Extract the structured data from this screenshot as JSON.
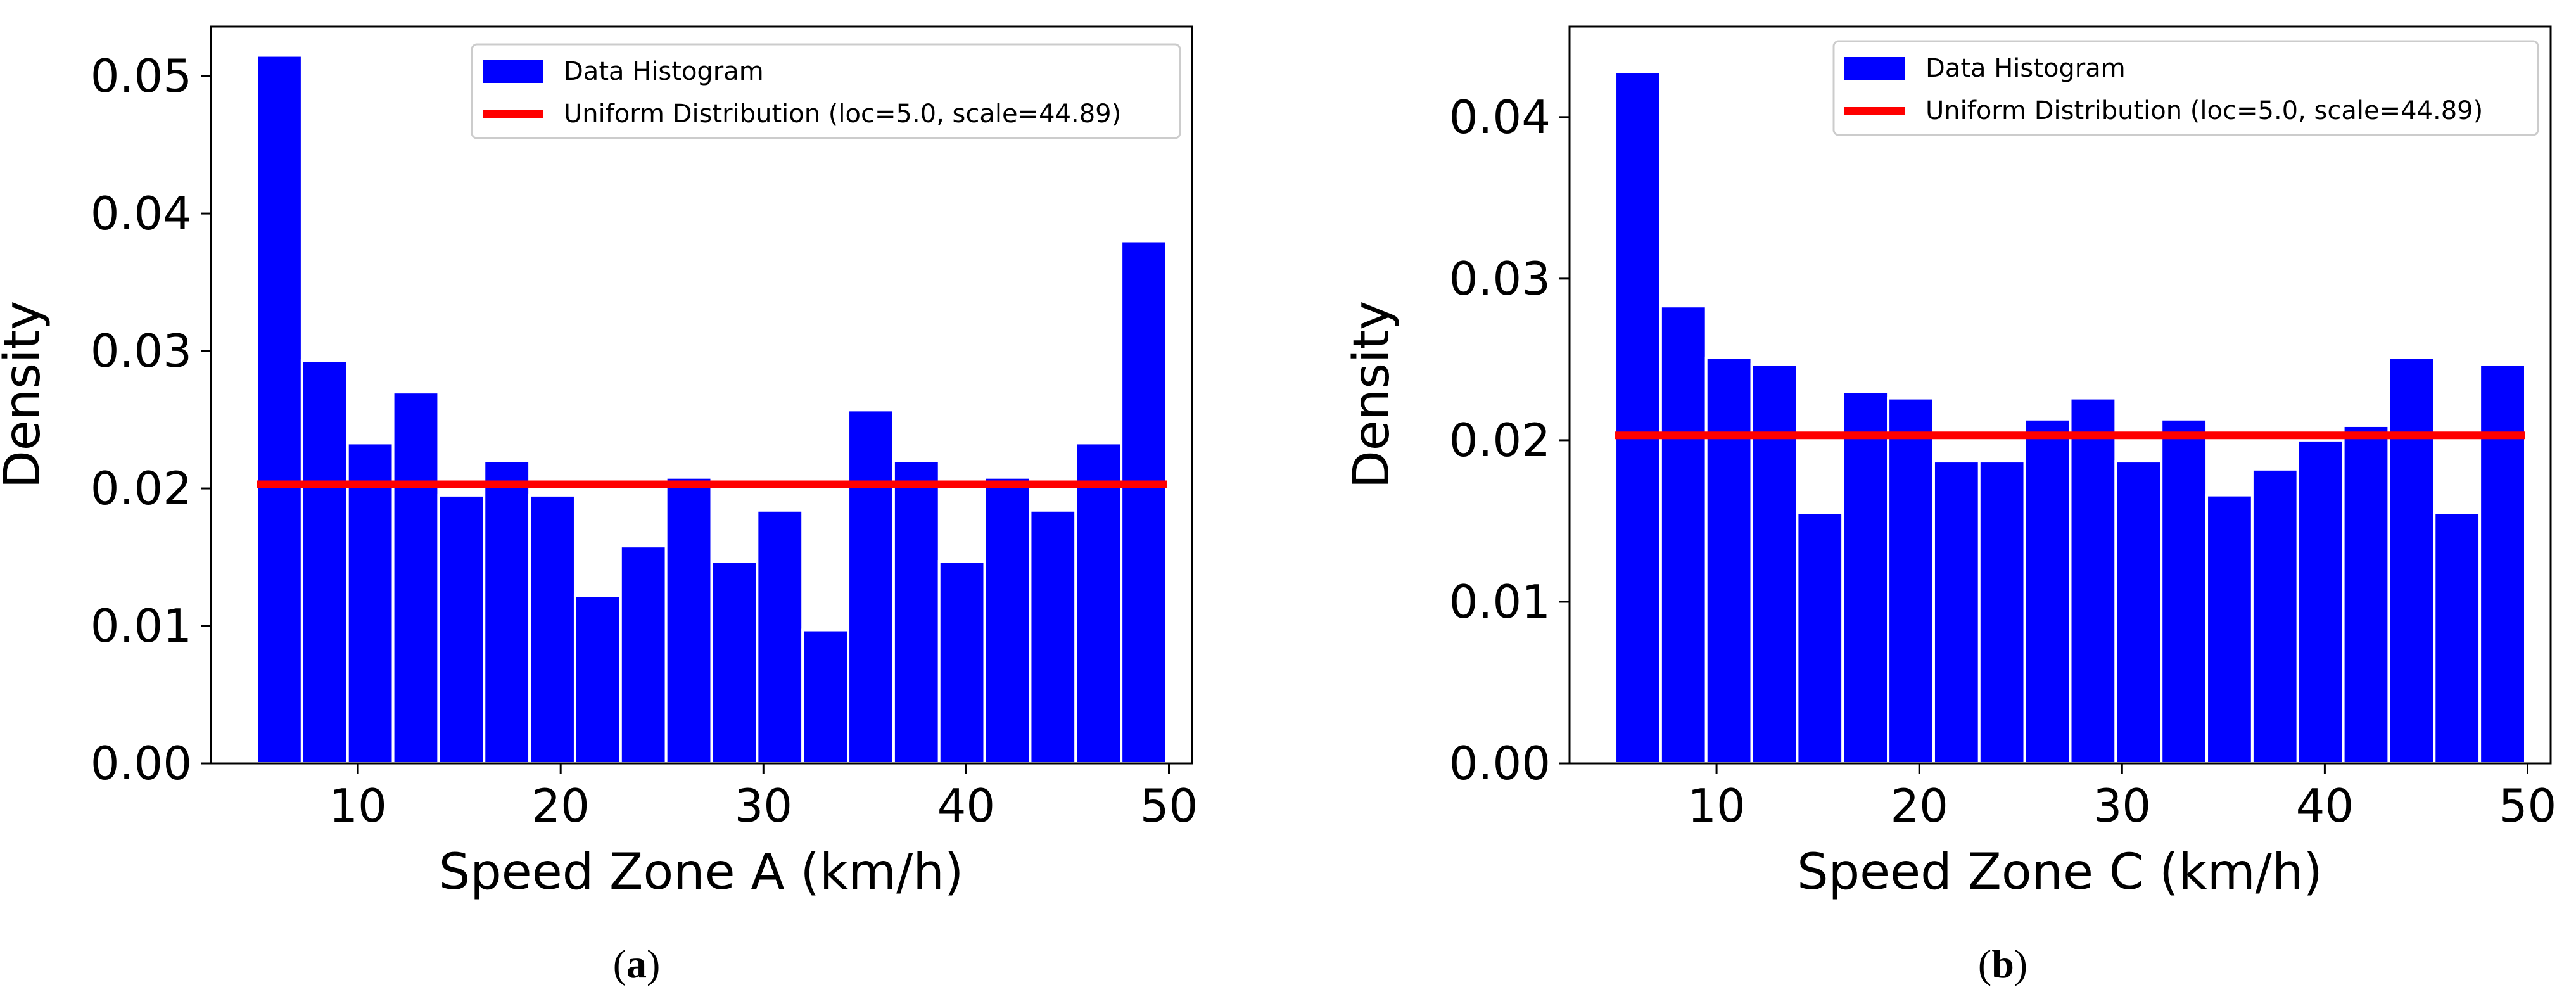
{
  "colors": {
    "bar": "#0000ff",
    "bar_edge": "#ffffff",
    "uniform_line": "#ff0000",
    "axis": "#000000",
    "background": "#ffffff"
  },
  "chart_data": [
    {
      "type": "bar",
      "subtype": "histogram",
      "caption_pre": "(",
      "caption_letter": "a",
      "caption_post": ")",
      "title": "",
      "xlabel": "Speed Zone A (km/h)",
      "ylabel": "Density",
      "xlim": [
        2.75,
        51.14
      ],
      "ylim": [
        0,
        0.0536
      ],
      "xticks": [
        10,
        20,
        30,
        40,
        50
      ],
      "xtick_labels": [
        "10",
        "20",
        "30",
        "40",
        "50"
      ],
      "yticks": [
        0,
        0.01,
        0.02,
        0.03,
        0.04,
        0.05
      ],
      "ytick_labels": [
        "0.00",
        "0.01",
        "0.02",
        "0.03",
        "0.04",
        "0.05"
      ],
      "bin_start": 5.0,
      "bin_width": 2.2445,
      "values": [
        0.0515,
        0.0293,
        0.0233,
        0.027,
        0.0195,
        0.022,
        0.0195,
        0.0122,
        0.0158,
        0.0208,
        0.0147,
        0.0184,
        0.0097,
        0.0257,
        0.022,
        0.0147,
        0.0208,
        0.0184,
        0.0233,
        0.038
      ],
      "uniform": {
        "loc": 5.0,
        "scale": 44.89,
        "density": 0.0203,
        "x_start": 5.0,
        "x_end": 49.89
      },
      "legend": {
        "position": "top-right",
        "entries": [
          "Data Histogram",
          "Uniform Distribution (loc=5.0, scale=44.89)"
        ]
      }
    },
    {
      "type": "bar",
      "subtype": "histogram",
      "caption_pre": "(",
      "caption_letter": "b",
      "caption_post": ")",
      "title": "",
      "xlabel": "Speed Zone C (km/h)",
      "ylabel": "Density",
      "xlim": [
        2.75,
        51.14
      ],
      "ylim": [
        0,
        0.0456
      ],
      "xticks": [
        10,
        20,
        30,
        40,
        50
      ],
      "xtick_labels": [
        "10",
        "20",
        "30",
        "40",
        "50"
      ],
      "yticks": [
        0,
        0.01,
        0.02,
        0.03,
        0.04
      ],
      "ytick_labels": [
        "0.00",
        "0.01",
        "0.02",
        "0.03",
        "0.04"
      ],
      "bin_start": 5.0,
      "bin_width": 2.2445,
      "values": [
        0.0428,
        0.0283,
        0.0251,
        0.0247,
        0.0155,
        0.023,
        0.0226,
        0.0187,
        0.0187,
        0.0213,
        0.0226,
        0.0187,
        0.0213,
        0.0166,
        0.0182,
        0.02,
        0.0209,
        0.0251,
        0.0155,
        0.0247
      ],
      "uniform": {
        "loc": 5.0,
        "scale": 44.89,
        "density": 0.0203,
        "x_start": 5.0,
        "x_end": 49.89
      },
      "legend": {
        "position": "top-right",
        "entries": [
          "Data Histogram",
          "Uniform Distribution (loc=5.0, scale=44.89)"
        ]
      }
    }
  ]
}
